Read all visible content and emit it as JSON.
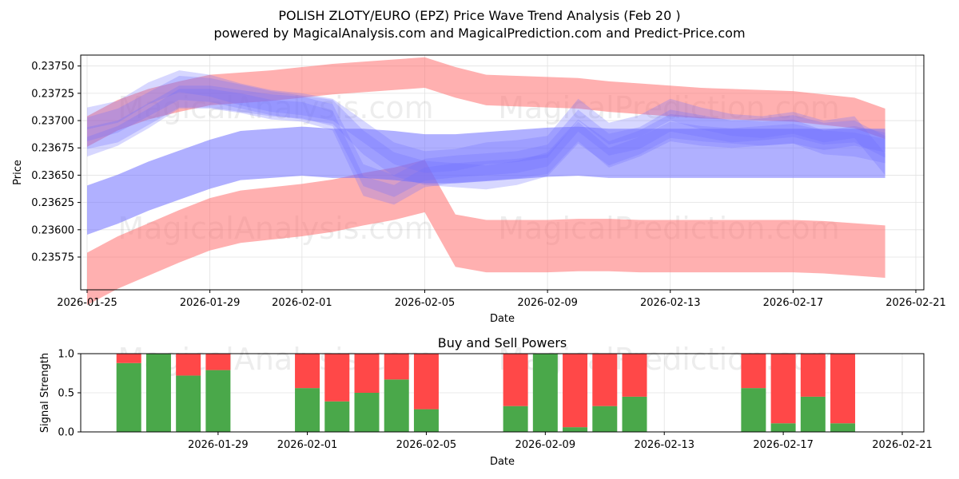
{
  "title_line1": "POLISH ZLOTY/EURO (EPZ) Price Wave Trend Analysis (Feb 20 )",
  "title_line2": "powered by MagicalAnalysis.com and MagicalPrediction.com and Predict-Price.com",
  "watermarks": [
    "MagicalAnalysis.com",
    "MagicalPrediction.com"
  ],
  "colors": {
    "red_band": "#ff6f6f",
    "blue_band": "#6f6fff",
    "buy": "#4aa84a",
    "sell": "#ff4848",
    "grid": "#e2e2e2"
  },
  "chart_data": [
    {
      "type": "area",
      "title": "",
      "xlabel": "Date",
      "ylabel": "Price",
      "ylim": [
        0.23545,
        0.2376
      ],
      "x_ticks": [
        "2026-01-25",
        "2026-01-29",
        "2026-02-01",
        "2026-02-05",
        "2026-02-09",
        "2026-02-13",
        "2026-02-17",
        "2026-02-21"
      ],
      "y_ticks": [
        "0.23575",
        "0.23600",
        "0.23625",
        "0.23650",
        "0.23675",
        "0.23700",
        "0.23725",
        "0.23750"
      ],
      "x_days": [
        "2026-01-25",
        "2026-01-26",
        "2026-01-27",
        "2026-01-28",
        "2026-01-29",
        "2026-01-30",
        "2026-01-31",
        "2026-02-01",
        "2026-02-02",
        "2026-02-03",
        "2026-02-04",
        "2026-02-05",
        "2026-02-06",
        "2026-02-07",
        "2026-02-08",
        "2026-02-09",
        "2026-02-10",
        "2026-02-11",
        "2026-02-12",
        "2026-02-13",
        "2026-02-14",
        "2026-02-15",
        "2026-02-16",
        "2026-02-17",
        "2026-02-18",
        "2026-02-19",
        "2026-02-20"
      ],
      "series": [
        {
          "name": "upper red band center",
          "color": "red",
          "values": [
            0.2369,
            0.23705,
            0.23715,
            0.23722,
            0.23728,
            0.2373,
            0.23732,
            0.23735,
            0.23738,
            0.2374,
            0.23742,
            0.23744,
            0.23735,
            0.23728,
            0.23727,
            0.23726,
            0.23725,
            0.23722,
            0.2372,
            0.23718,
            0.23716,
            0.23715,
            0.23714,
            0.23713,
            0.2371,
            0.23707,
            0.23697
          ],
          "width": 0.00028
        },
        {
          "name": "lower red band center",
          "color": "red",
          "values": [
            0.23555,
            0.2357,
            0.23582,
            0.23594,
            0.23605,
            0.23612,
            0.23615,
            0.23618,
            0.23622,
            0.23628,
            0.23633,
            0.2364,
            0.2359,
            0.23585,
            0.23585,
            0.23585,
            0.23586,
            0.23586,
            0.23585,
            0.23585,
            0.23585,
            0.23585,
            0.23585,
            0.23585,
            0.23584,
            0.23582,
            0.2358
          ],
          "width": 0.00048
        },
        {
          "name": "lower blue band center",
          "color": "blue",
          "values": [
            0.23618,
            0.23628,
            0.2364,
            0.2365,
            0.2366,
            0.23668,
            0.2367,
            0.23672,
            0.2367,
            0.2367,
            0.23668,
            0.23665,
            0.23665,
            0.23667,
            0.23669,
            0.23671,
            0.23672,
            0.2367,
            0.2367,
            0.2367,
            0.2367,
            0.2367,
            0.2367,
            0.2367,
            0.2367,
            0.2367,
            0.2367
          ],
          "width": 0.00045
        },
        {
          "name": "wave path 1",
          "color": "blue",
          "values": [
            0.23692,
            0.237,
            0.23715,
            0.2373,
            0.23728,
            0.23722,
            0.23716,
            0.23712,
            0.23708,
            0.2368,
            0.2366,
            0.23652,
            0.2365,
            0.23648,
            0.23652,
            0.2366,
            0.2369,
            0.2367,
            0.2368,
            0.23695,
            0.23692,
            0.2369,
            0.23688,
            0.2369,
            0.2368,
            0.23678,
            0.23672
          ],
          "width": 0.00022
        },
        {
          "name": "wave path 2",
          "color": "blue",
          "values": [
            0.23684,
            0.2369,
            0.23706,
            0.23722,
            0.23722,
            0.23718,
            0.23714,
            0.23712,
            0.23705,
            0.2365,
            0.2364,
            0.23655,
            0.23658,
            0.2366,
            0.23662,
            0.23668,
            0.237,
            0.23678,
            0.23684,
            0.237,
            0.23695,
            0.2369,
            0.23692,
            0.23695,
            0.23688,
            0.2369,
            0.23676
          ],
          "width": 0.0002
        },
        {
          "name": "wave path 3",
          "color": "blue",
          "values": [
            0.23702,
            0.23708,
            0.23725,
            0.23736,
            0.23732,
            0.23724,
            0.23718,
            0.23715,
            0.2371,
            0.2369,
            0.2367,
            0.23662,
            0.23664,
            0.2367,
            0.23672,
            0.23676,
            0.2371,
            0.23688,
            0.23695,
            0.2371,
            0.23702,
            0.23696,
            0.23694,
            0.23698,
            0.2369,
            0.23694,
            0.2366
          ],
          "width": 0.0002
        },
        {
          "name": "wave path 4",
          "color": "blue",
          "values": [
            0.23676,
            0.23686,
            0.23702,
            0.2372,
            0.2372,
            0.23716,
            0.2371,
            0.23708,
            0.237,
            0.2364,
            0.23632,
            0.23648,
            0.23652,
            0.23654,
            0.23656,
            0.2366,
            0.2369,
            0.23666,
            0.23676,
            0.2369,
            0.23686,
            0.23684,
            0.23686,
            0.23688,
            0.23682,
            0.23686,
            0.2368
          ],
          "width": 0.00018
        }
      ]
    },
    {
      "type": "bar",
      "title": "Buy and Sell Powers",
      "xlabel": "Date",
      "ylabel": "Signal Strength",
      "ylim": [
        0,
        1.0
      ],
      "y_ticks": [
        "0.0",
        "0.5",
        "1.0"
      ],
      "x_ticks": [
        "2026-01-29",
        "2026-02-01",
        "2026-02-05",
        "2026-02-09",
        "2026-02-13",
        "2026-02-17",
        "2026-02-21"
      ],
      "categories": [
        "2026-01-26",
        "2026-01-27",
        "2026-01-28",
        "2026-01-29",
        "2026-02-01",
        "2026-02-02",
        "2026-02-03",
        "2026-02-04",
        "2026-02-05",
        "2026-02-08",
        "2026-02-09",
        "2026-02-10",
        "2026-02-11",
        "2026-02-12",
        "2026-02-16",
        "2026-02-17",
        "2026-02-18",
        "2026-02-19"
      ],
      "series": [
        {
          "name": "Buy",
          "values": [
            0.88,
            1.0,
            0.72,
            0.79,
            0.56,
            0.39,
            0.5,
            0.67,
            0.29,
            0.33,
            1.0,
            0.06,
            0.33,
            0.45,
            0.56,
            0.11,
            0.45,
            0.11
          ]
        },
        {
          "name": "Sell",
          "values": [
            0.12,
            0.0,
            0.28,
            0.21,
            0.44,
            0.61,
            0.5,
            0.33,
            0.71,
            0.67,
            0.0,
            0.94,
            0.67,
            0.55,
            0.44,
            0.89,
            0.55,
            0.89
          ]
        }
      ]
    }
  ]
}
